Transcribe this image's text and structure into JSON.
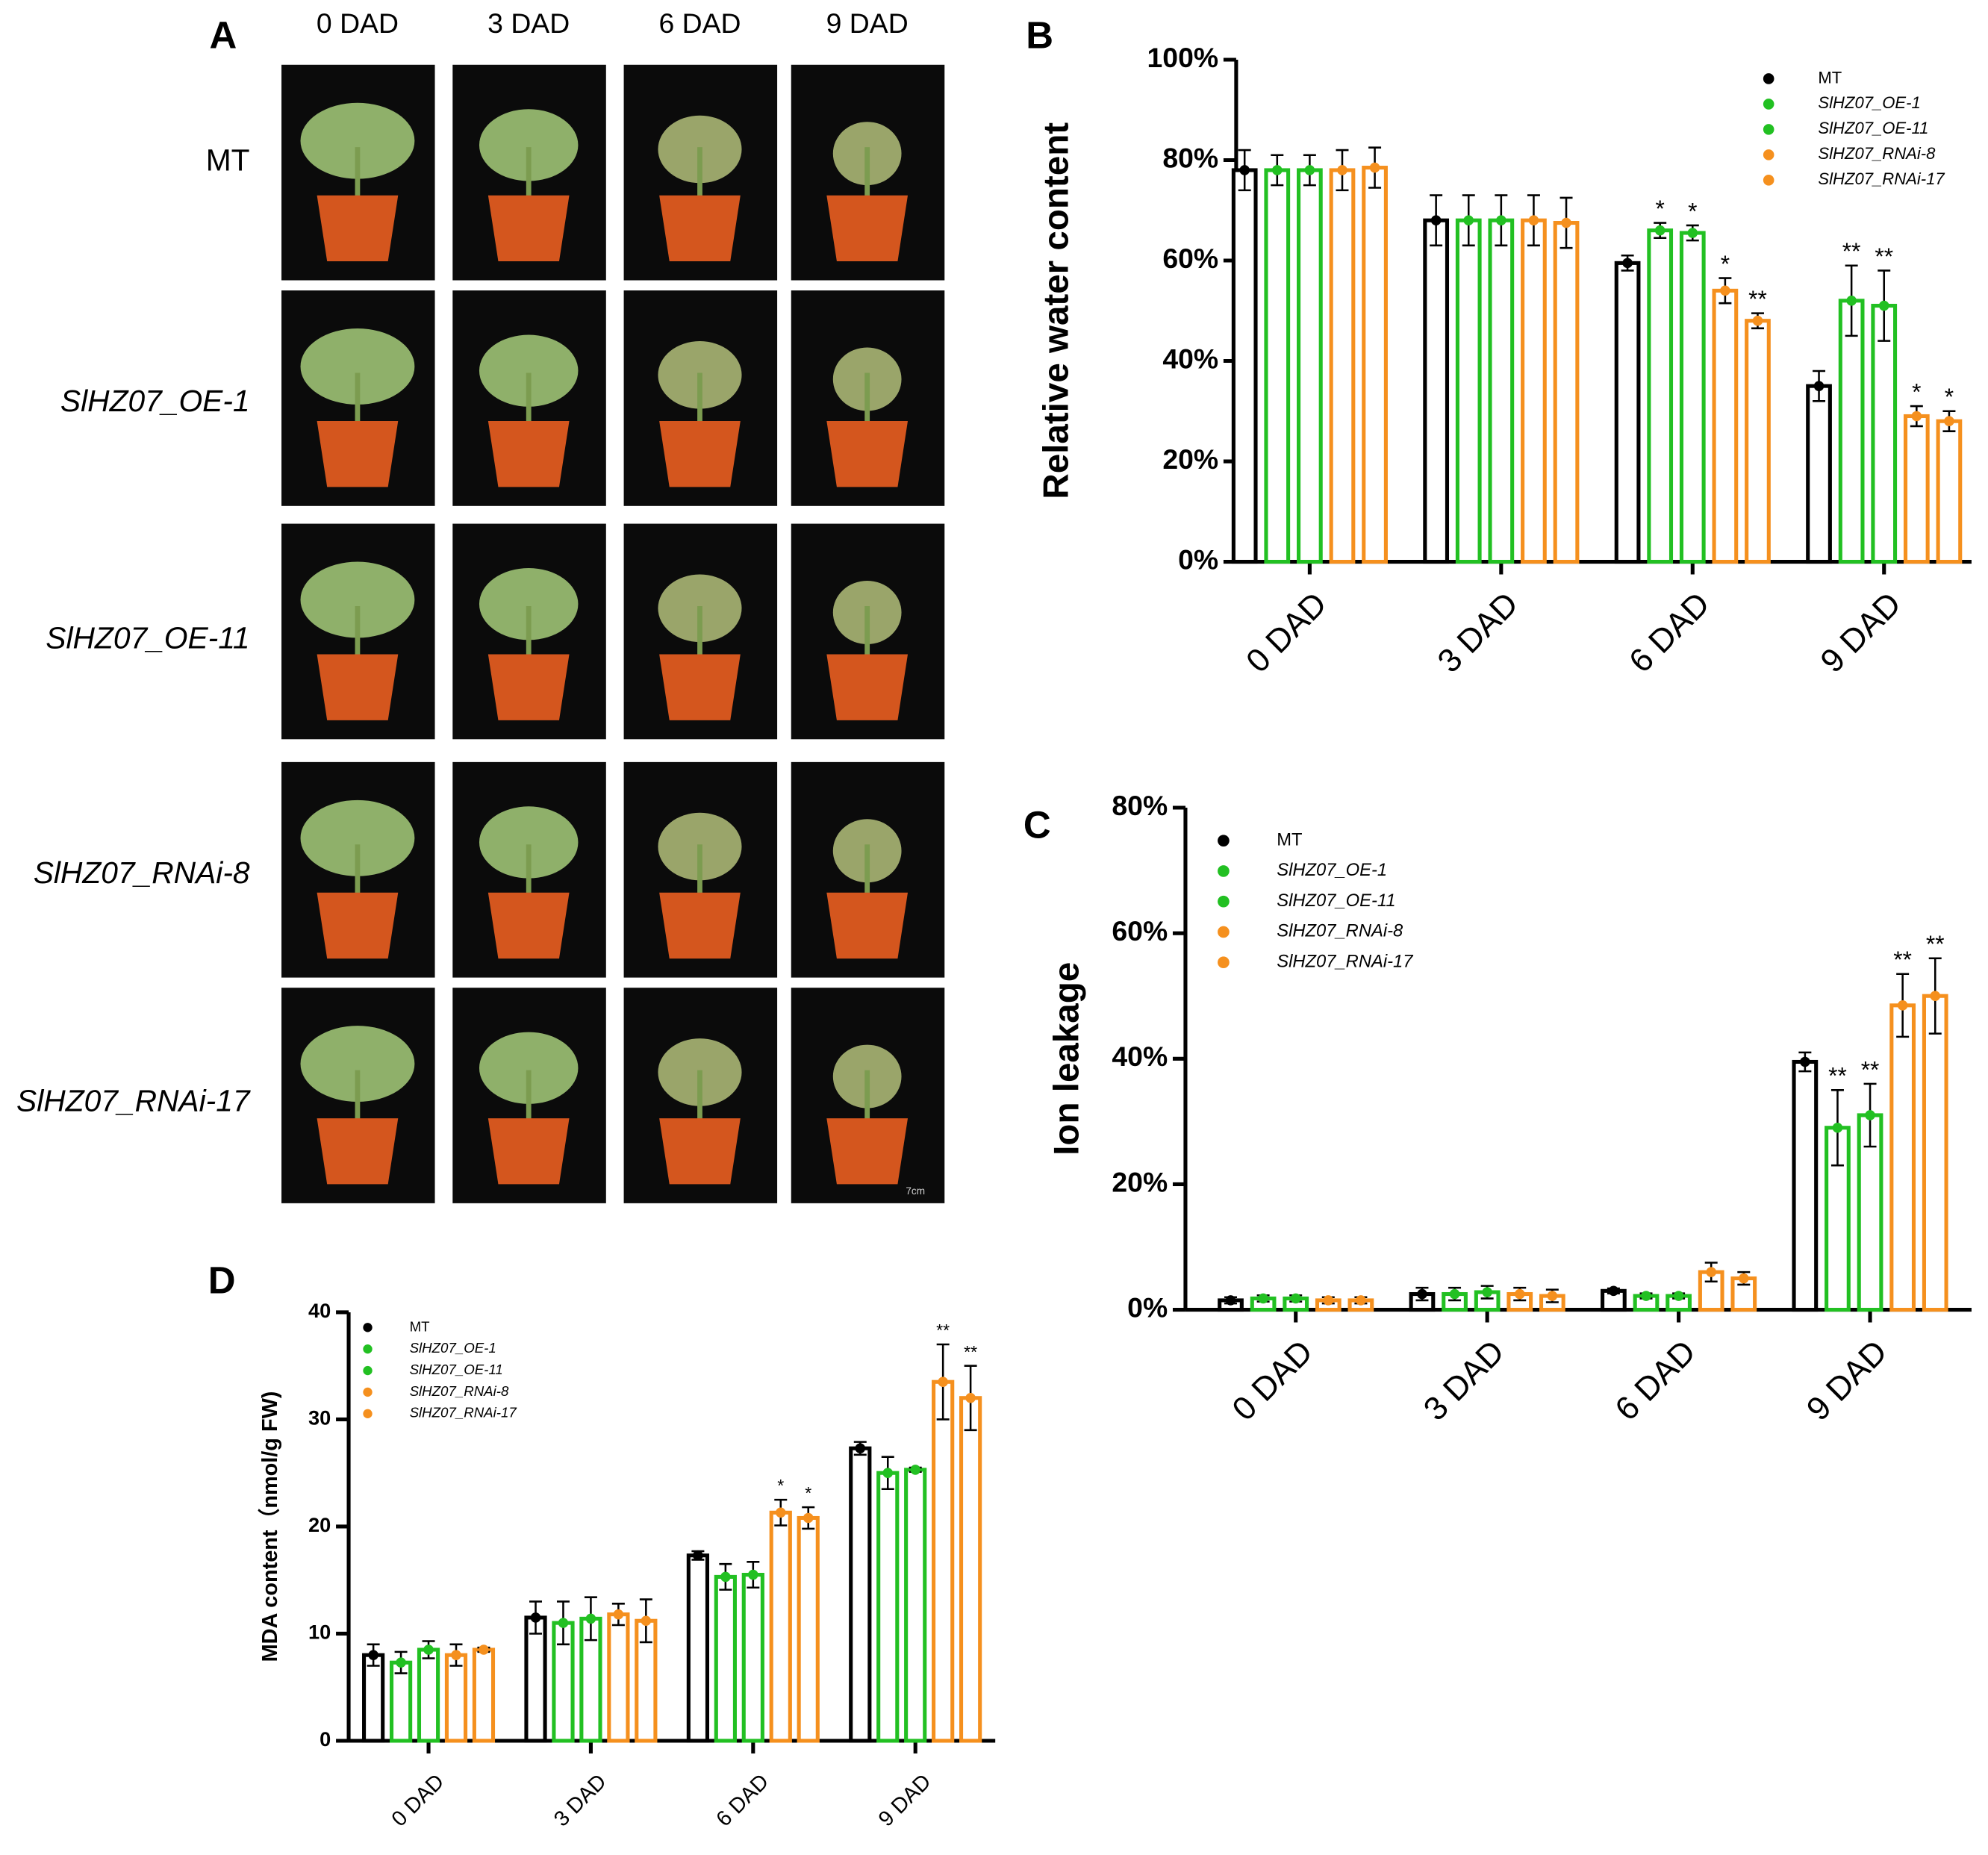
{
  "photo_panel": {
    "panel_label": "A",
    "columns": [
      "0 DAD",
      "3 DAD",
      "6 DAD",
      "9 DAD"
    ],
    "rows": [
      "MT",
      "SlHZ07_OE-1",
      "SlHZ07_OE-11",
      "SlHZ07_RNAi-8",
      "SlHZ07_RNAi-17"
    ],
    "scale_label": "7cm"
  },
  "chart_data": [
    {
      "type": "bar",
      "panel_label": "B",
      "y_label": "Relative water content",
      "categories": [
        "0 DAD",
        "3 DAD",
        "6 DAD",
        "9 DAD"
      ],
      "ylim": [
        0,
        100
      ],
      "yticks": [
        {
          "value": 0,
          "label": "0%"
        },
        {
          "value": 20,
          "label": "20%"
        },
        {
          "value": 40,
          "label": "40%"
        },
        {
          "value": 60,
          "label": "60%"
        },
        {
          "value": 80,
          "label": "80%"
        },
        {
          "value": 100,
          "label": "100%"
        }
      ],
      "series": [
        {
          "name": "MT",
          "color": "#000000",
          "values": [
            78,
            68,
            59.5,
            35
          ],
          "errors": [
            4,
            5,
            1.5,
            3
          ],
          "annotations": [
            null,
            null,
            null,
            null
          ]
        },
        {
          "name": "SlHZ07_OE-1",
          "color": "#22c022",
          "values": [
            78,
            68,
            66,
            52
          ],
          "errors": [
            3,
            5,
            1.5,
            7
          ],
          "annotations": [
            null,
            null,
            "*",
            "**"
          ]
        },
        {
          "name": "SlHZ07_OE-11",
          "color": "#22c022",
          "values": [
            78,
            68,
            65.5,
            51
          ],
          "errors": [
            3,
            5,
            1.5,
            7
          ],
          "annotations": [
            null,
            null,
            "*",
            "**"
          ]
        },
        {
          "name": "SlHZ07_RNAi-8",
          "color": "#f5901e",
          "values": [
            78,
            68,
            54,
            29
          ],
          "errors": [
            4,
            5,
            2.5,
            2
          ],
          "annotations": [
            null,
            null,
            "*",
            "*"
          ]
        },
        {
          "name": "SlHZ07_RNAi-17",
          "color": "#f5901e",
          "values": [
            78.5,
            67.5,
            48,
            28
          ],
          "errors": [
            4,
            5,
            1.5,
            2
          ],
          "annotations": [
            null,
            null,
            "**",
            "*"
          ]
        }
      ]
    },
    {
      "type": "bar",
      "panel_label": "C",
      "y_label": "Ion leakage",
      "categories": [
        "0 DAD",
        "3 DAD",
        "6 DAD",
        "9 DAD"
      ],
      "ylim": [
        0,
        80
      ],
      "yticks": [
        {
          "value": 0,
          "label": "0%"
        },
        {
          "value": 20,
          "label": "20%"
        },
        {
          "value": 40,
          "label": "40%"
        },
        {
          "value": 60,
          "label": "60%"
        },
        {
          "value": 80,
          "label": "80%"
        }
      ],
      "series": [
        {
          "name": "MT",
          "color": "#000000",
          "values": [
            1.5,
            2.5,
            3,
            39.5
          ],
          "errors": [
            0.5,
            1,
            0.4,
            1.5
          ],
          "annotations": [
            null,
            null,
            null,
            null
          ]
        },
        {
          "name": "SlHZ07_OE-1",
          "color": "#22c022",
          "values": [
            1.8,
            2.5,
            2.2,
            29
          ],
          "errors": [
            0.5,
            1,
            0.4,
            6
          ],
          "annotations": [
            null,
            null,
            null,
            "**"
          ]
        },
        {
          "name": "SlHZ07_OE-11",
          "color": "#22c022",
          "values": [
            1.8,
            2.8,
            2.2,
            31
          ],
          "errors": [
            0.5,
            1,
            0.4,
            5
          ],
          "annotations": [
            null,
            null,
            null,
            "**"
          ]
        },
        {
          "name": "SlHZ07_RNAi-8",
          "color": "#f5901e",
          "values": [
            1.5,
            2.5,
            6,
            48.5
          ],
          "errors": [
            0.5,
            1,
            1.5,
            5
          ],
          "annotations": [
            null,
            null,
            null,
            "**"
          ]
        },
        {
          "name": "SlHZ07_RNAi-17",
          "color": "#f5901e",
          "values": [
            1.5,
            2.2,
            5,
            50
          ],
          "errors": [
            0.5,
            1,
            1,
            6
          ],
          "annotations": [
            null,
            null,
            null,
            "**"
          ]
        }
      ]
    },
    {
      "type": "bar",
      "panel_label": "D",
      "y_label": "MDA content（nmol/g FW)",
      "categories": [
        "0 DAD",
        "3 DAD",
        "6 DAD",
        "9 DAD"
      ],
      "ylim": [
        0,
        40
      ],
      "yticks": [
        0,
        10,
        20,
        30,
        40
      ],
      "series": [
        {
          "name": "MT",
          "color": "#000000",
          "values": [
            8,
            11.5,
            17.3,
            27.3
          ],
          "errors": [
            1,
            1.5,
            0.4,
            0.6
          ],
          "annotations": [
            null,
            null,
            null,
            null
          ]
        },
        {
          "name": "SlHZ07_OE-1",
          "color": "#22c022",
          "values": [
            7.3,
            11,
            15.3,
            25
          ],
          "errors": [
            1,
            2,
            1.2,
            1.5
          ],
          "annotations": [
            null,
            null,
            null,
            null
          ]
        },
        {
          "name": "SlHZ07_OE-11",
          "color": "#22c022",
          "values": [
            8.5,
            11.4,
            15.5,
            25.3
          ],
          "errors": [
            0.8,
            2,
            1.2,
            0.2
          ],
          "annotations": [
            null,
            null,
            null,
            null
          ]
        },
        {
          "name": "SlHZ07_RNAi-8",
          "color": "#f5901e",
          "values": [
            8,
            11.8,
            21.3,
            33.5
          ],
          "errors": [
            1,
            1,
            1.2,
            3.5
          ],
          "annotations": [
            null,
            null,
            "*",
            "**"
          ]
        },
        {
          "name": "SlHZ07_RNAi-17",
          "color": "#f5901e",
          "values": [
            8.5,
            11.2,
            20.8,
            32
          ],
          "errors": [
            0.2,
            2,
            1,
            3
          ],
          "annotations": [
            null,
            null,
            "*",
            "**"
          ]
        }
      ]
    }
  ]
}
